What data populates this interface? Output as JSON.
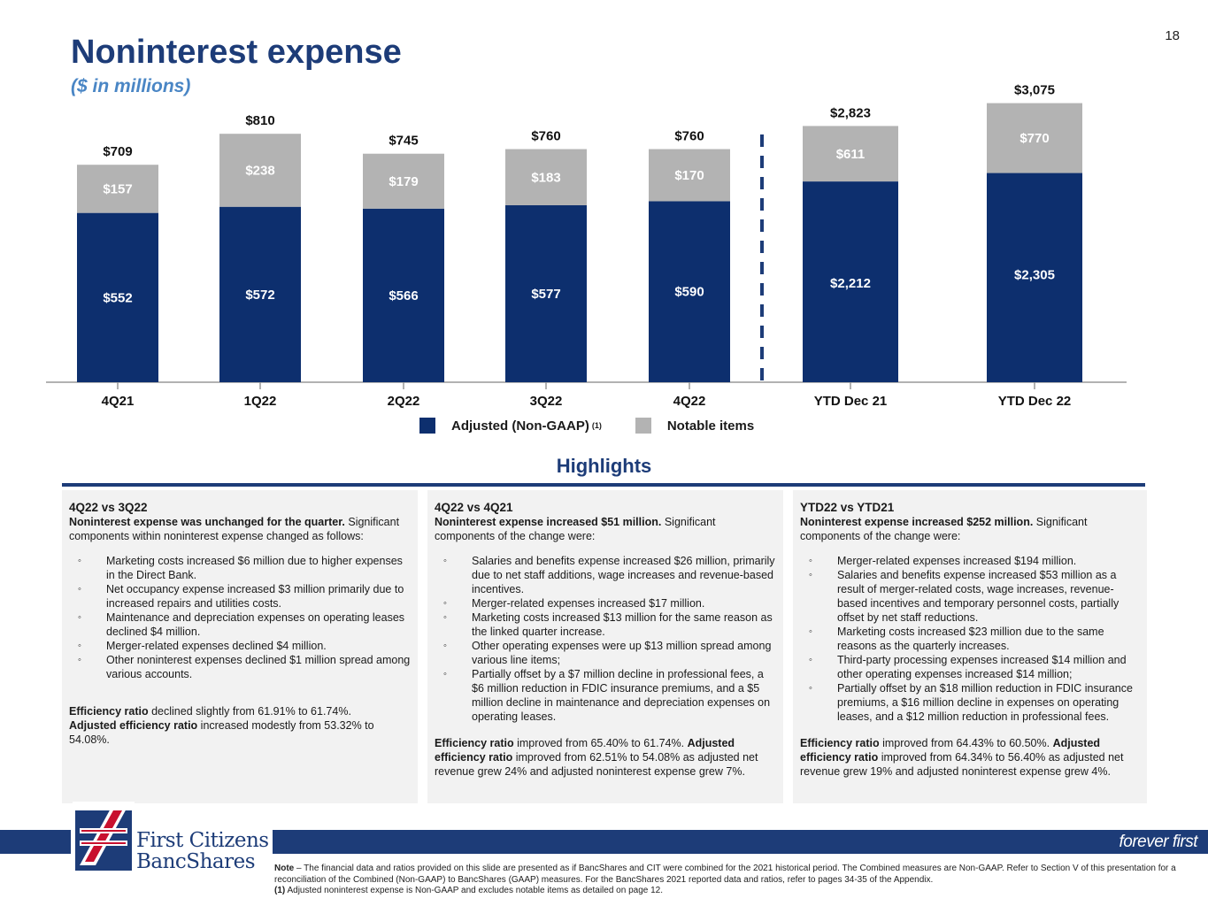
{
  "page_number": "18",
  "title": "Noninterest expense",
  "subtitle": "($ in millions)",
  "colors": {
    "adjusted": "#0d2f6e",
    "notable": "#b3b3b3",
    "title": "#1d3c78",
    "subtitle": "#4a86c5"
  },
  "chart_data": {
    "type": "bar",
    "stacked": true,
    "title": "Noninterest expense",
    "ylabel": "$ in millions",
    "categories": [
      "4Q21",
      "1Q22",
      "2Q22",
      "3Q22",
      "4Q22",
      "YTD Dec 21",
      "YTD Dec 22"
    ],
    "series": [
      {
        "name": "Adjusted (Non-GAAP)",
        "values": [
          552,
          572,
          566,
          577,
          590,
          2212,
          2305
        ],
        "labels": [
          "$552",
          "$572",
          "$566",
          "$577",
          "$590",
          "$2,212",
          "$2,305"
        ]
      },
      {
        "name": "Notable items",
        "values": [
          157,
          238,
          179,
          183,
          170,
          611,
          770
        ],
        "labels": [
          "$157",
          "$238",
          "$179",
          "$183",
          "$170",
          "$611",
          "$770"
        ]
      }
    ],
    "totals": [
      709,
      810,
      745,
      760,
      760,
      2823,
      3075
    ],
    "total_labels": [
      "$709",
      "$810",
      "$745",
      "$760",
      "$760",
      "$2,823",
      "$3,075"
    ],
    "separator_after": "4Q22"
  },
  "legend": {
    "adjusted": "Adjusted (Non-GAAP)",
    "adjusted_sup": "(1)",
    "notable": "Notable items"
  },
  "highlights_title": "Highlights",
  "panels": [
    {
      "heading": "4Q22 vs 3Q22",
      "lead_bold": "Noninterest expense was unchanged for the quarter.",
      "lead_rest": " Significant components within noninterest expense changed as follows:",
      "bullets": [
        "Marketing costs increased $6 million due to higher expenses in the Direct Bank.",
        "Net occupancy expense increased $3 million primarily due to increased repairs and utilities costs.",
        "Maintenance and depreciation expenses on operating leases declined $4 million.",
        "Merger-related expenses declined $4 million.",
        "Other noninterest expenses declined $1 million spread among various accounts."
      ],
      "ratio_bold_1": "Efficiency ratio",
      "ratio_text_1": " declined slightly from 61.91% to 61.74%.",
      "ratio_bold_2": "Adjusted efficiency ratio",
      "ratio_text_2": " increased modestly from 53.32% to 54.08%."
    },
    {
      "heading": "4Q22 vs 4Q21",
      "lead_bold": "Noninterest expense increased $51 million.",
      "lead_rest": " Significant components of the change were:",
      "bullets": [
        "Salaries and benefits expense increased $26 million, primarily due to net staff additions, wage increases and revenue-based incentives.",
        "Merger-related expenses increased $17 million.",
        "Marketing costs increased $13 million for the same reason as the linked quarter increase.",
        "Other operating expenses were up $13 million spread among various line items;",
        "Partially offset by a $7 million decline in professional fees, a $6 million reduction in FDIC insurance premiums, and a $5 million decline in maintenance and depreciation expenses on operating leases."
      ],
      "ratio_bold_1": "Efficiency ratio",
      "ratio_text_1": " improved from 65.40% to 61.74%.",
      "ratio_bold_2": "Adjusted efficiency ratio",
      "ratio_text_2": " improved from 62.51% to 54.08% as adjusted net revenue grew 24% and adjusted noninterest expense grew 7%."
    },
    {
      "heading": "YTD22 vs YTD21",
      "lead_bold": "Noninterest expense increased $252 million.",
      "lead_rest": " Significant components of the change were:",
      "bullets": [
        "Merger-related expenses increased $194 million.",
        "Salaries and benefits expense increased $53 million as a result of merger-related costs, wage increases, revenue-based incentives and temporary personnel costs, partially offset by net staff reductions.",
        "Marketing costs increased $23 million due to the same reasons as the quarterly increases.",
        "Third-party processing expenses increased $14 million and other operating expenses increased $14 million;",
        "Partially offset by an $18 million reduction in FDIC insurance premiums, a $16 million decline in expenses on operating leases, and a $12 million reduction in professional fees."
      ],
      "ratio_bold_1": "Efficiency ratio",
      "ratio_text_1": " improved from 64.43% to 60.50%.",
      "ratio_bold_2": "Adjusted efficiency ratio",
      "ratio_text_2": " improved from 64.34% to 56.40% as adjusted net revenue grew 19% and adjusted noninterest expense grew 4%."
    }
  ],
  "footer": {
    "logo_line1": "First Citizens",
    "logo_line2": "BancShares",
    "tagline": "forever first",
    "note_bold": "Note",
    "note_text": " – The financial data and ratios provided on this slide are presented as if BancShares and CIT were combined for the 2021 historical period. The Combined measures are Non-GAAP. Refer to Section V of this presentation for a reconciliation of the Combined (Non-GAAP) to BancShares (GAAP) measures. For the BancShares 2021 reported data and ratios, refer to pages 34-35 of the Appendix.",
    "footnote_bold": "(1)",
    "footnote_text": " Adjusted noninterest expense is Non-GAAP and excludes notable items as detailed on page 12."
  }
}
